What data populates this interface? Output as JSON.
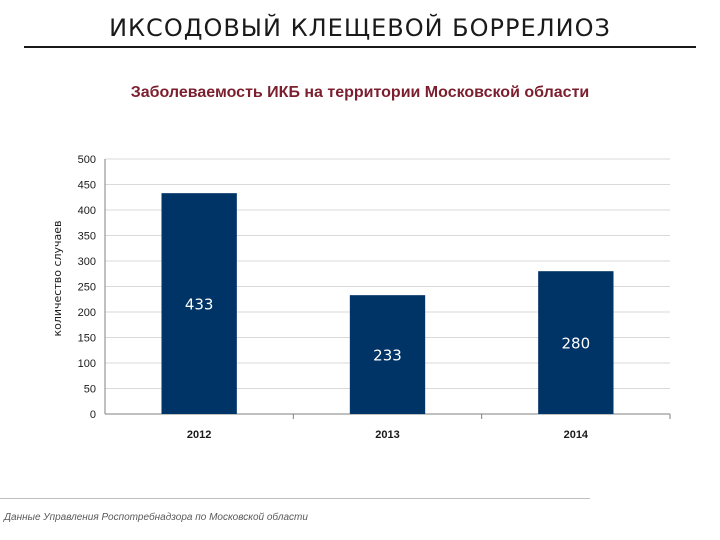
{
  "slide": {
    "title": "ИКСОДОВЫЙ КЛЕЩЕВОЙ БОРРЕЛИОЗ",
    "source_note": "Данные Управления Роспотребнадзора по Московской области"
  },
  "chart_data": {
    "type": "bar",
    "title": "Заболеваемость ИКБ на территории Московской области",
    "xlabel": "",
    "ylabel": "количество случаев",
    "categories": [
      "2012",
      "2013",
      "2014"
    ],
    "values": [
      433,
      233,
      280
    ],
    "data_labels": [
      "433",
      "233",
      "280"
    ],
    "ylim": [
      0,
      500
    ],
    "yticks": [
      0,
      50,
      100,
      150,
      200,
      250,
      300,
      350,
      400,
      450,
      500
    ],
    "grid": true,
    "legend": "none",
    "colors": {
      "bar": "#003366",
      "grid": "#d9d9d9",
      "axis": "#808080",
      "data_label": "#ffffff",
      "title": "#7b1f2e"
    }
  }
}
